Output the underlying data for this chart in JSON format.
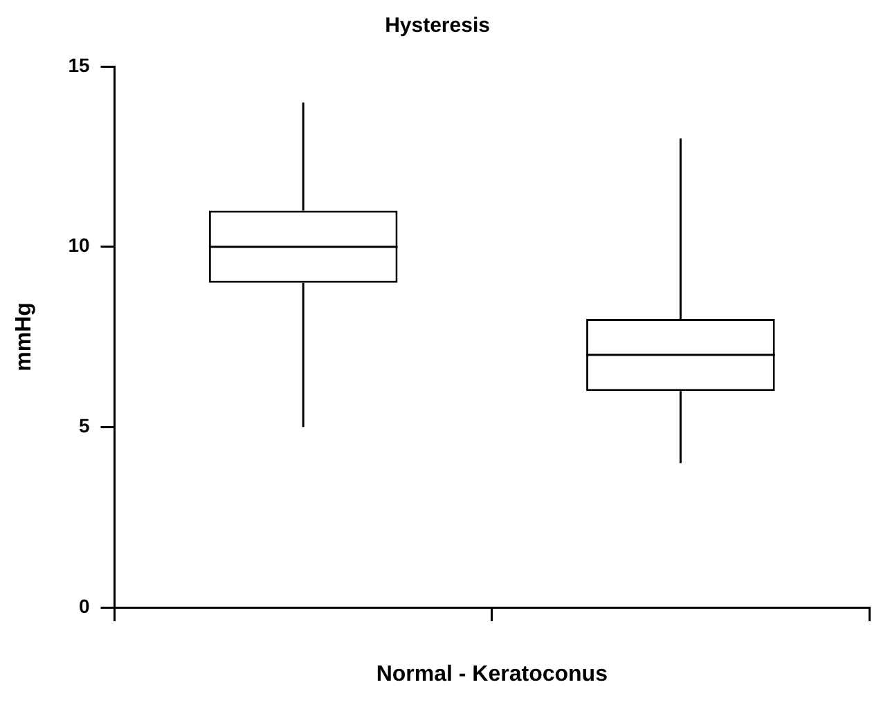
{
  "chart_data": {
    "type": "box",
    "title": "Hysteresis",
    "xlabel": "Normal - Keratoconus",
    "ylabel": "mmHg",
    "categories": [
      null,
      null
    ],
    "boxes": [
      {
        "low": 5,
        "q1": 9,
        "median": 10,
        "q3": 11,
        "high": 14
      },
      {
        "low": 4,
        "q1": 6,
        "median": 7,
        "q3": 8,
        "high": 13
      }
    ],
    "color": "#000000",
    "ylim": [
      0,
      15
    ],
    "yticks": [
      0,
      5,
      10,
      15
    ],
    "grid": false,
    "legend": false
  }
}
